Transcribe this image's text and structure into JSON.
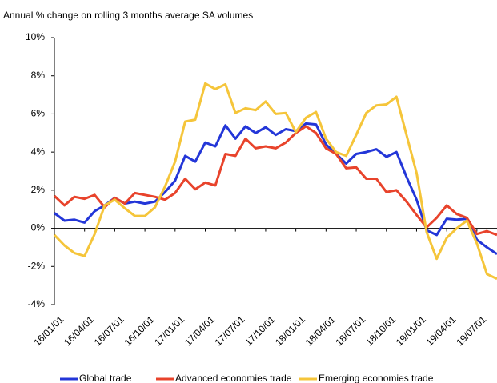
{
  "chart_data": {
    "type": "line",
    "subtitle": "Annual % change on rolling 3 months average SA volumes",
    "categories": [
      "16/01/01",
      null,
      null,
      "16/04/01",
      null,
      null,
      "16/07/01",
      null,
      null,
      "16/10/01",
      null,
      null,
      "17/01/01",
      null,
      null,
      "17/04/01",
      null,
      null,
      "17/07/01",
      null,
      null,
      "17/10/01",
      null,
      null,
      "18/01/01",
      null,
      null,
      "18/04/01",
      null,
      null,
      "18/07/01",
      null,
      null,
      "18/10/01",
      null,
      null,
      "19/01/01",
      null,
      null,
      "19/04/01",
      null,
      null,
      "19/07/01",
      null,
      null
    ],
    "series": [
      {
        "name": "Global trade",
        "color": "#2336d8",
        "values": [
          0.8,
          0.4,
          0.45,
          0.3,
          0.9,
          1.2,
          1.6,
          1.3,
          1.4,
          1.3,
          1.4,
          1.9,
          2.5,
          3.8,
          3.5,
          4.5,
          4.3,
          5.4,
          4.7,
          5.35,
          5.0,
          5.3,
          4.9,
          5.2,
          5.1,
          5.5,
          5.45,
          4.4,
          3.9,
          3.4,
          3.9,
          4.0,
          4.15,
          3.75,
          4.0,
          2.7,
          1.5,
          -0.1,
          -0.35,
          0.5,
          0.45,
          0.5,
          -0.6,
          -1.0,
          -1.35
        ]
      },
      {
        "name": "Advanced economies trade",
        "color": "#e8432b",
        "values": [
          1.7,
          1.2,
          1.65,
          1.55,
          1.75,
          1.1,
          1.6,
          1.3,
          1.85,
          1.75,
          1.65,
          1.5,
          1.85,
          2.6,
          2.05,
          2.4,
          2.25,
          3.9,
          3.8,
          4.7,
          4.2,
          4.3,
          4.2,
          4.5,
          5.0,
          5.35,
          5.0,
          4.2,
          3.9,
          3.15,
          3.2,
          2.6,
          2.6,
          1.9,
          2.0,
          1.4,
          0.7,
          0.05,
          0.55,
          1.2,
          0.75,
          0.55,
          -0.3,
          -0.15,
          -0.35
        ]
      },
      {
        "name": "Emerging economies trade",
        "color": "#f5c53a",
        "values": [
          -0.35,
          -0.9,
          -1.3,
          -1.45,
          -0.3,
          1.2,
          1.5,
          1.05,
          0.65,
          0.65,
          1.1,
          2.2,
          3.5,
          5.6,
          5.7,
          7.6,
          7.3,
          7.55,
          6.05,
          6.3,
          6.2,
          6.65,
          6.0,
          6.05,
          5.05,
          5.8,
          6.1,
          4.7,
          4.0,
          3.8,
          4.9,
          6.05,
          6.45,
          6.5,
          6.9,
          4.9,
          2.9,
          -0.2,
          -1.6,
          -0.5,
          0.0,
          0.4,
          -0.8,
          -2.4,
          -2.65
        ]
      }
    ],
    "ylim": [
      -4,
      10
    ],
    "yticks": [
      {
        "value": -4,
        "label": "-4%"
      },
      {
        "value": -2,
        "label": "-2%"
      },
      {
        "value": 0,
        "label": "0%"
      },
      {
        "value": 2,
        "label": "2%"
      },
      {
        "value": 4,
        "label": "4%"
      },
      {
        "value": 6,
        "label": "6%"
      },
      {
        "value": 8,
        "label": "8%"
      },
      {
        "value": 10,
        "label": "10%"
      }
    ],
    "grid": false,
    "legend": "bottom"
  }
}
